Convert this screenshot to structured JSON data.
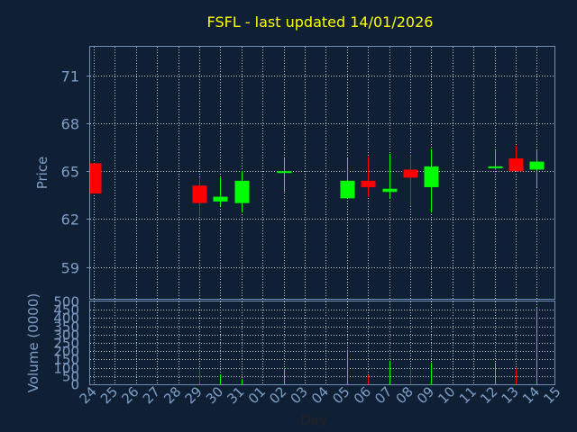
{
  "colors": {
    "background": "#0f2035",
    "title": "#ffff00",
    "axis_text": "#7f9fc8",
    "grid": "#cccccc",
    "frame": "#6f8fb8",
    "up": "#00ff00",
    "down": "#ff0000"
  },
  "chart_data": [
    {
      "type": "candlestick",
      "title": "FSFL - last updated 14/01/2026",
      "ylabel": "Price",
      "ylim": [
        57,
        72.8
      ],
      "yticks": [
        59,
        62,
        65,
        68,
        71
      ],
      "grid": true,
      "candles": [
        {
          "day": "24",
          "open": 65.5,
          "high": 65.5,
          "low": 63.6,
          "close": 63.6
        },
        {
          "day": "29",
          "open": 64.1,
          "high": 64.6,
          "low": 62.2,
          "close": 63.0
        },
        {
          "day": "30",
          "open": 63.1,
          "high": 64.6,
          "low": 62.8,
          "close": 63.4
        },
        {
          "day": "31",
          "open": 63.0,
          "high": 65.0,
          "low": 62.4,
          "close": 64.4
        },
        {
          "day": "02",
          "open": 64.9,
          "high": 65.8,
          "low": 63.7,
          "close": 65.0
        },
        {
          "day": "05",
          "open": 63.3,
          "high": 65.8,
          "low": 63.3,
          "close": 64.4
        },
        {
          "day": "06",
          "open": 64.4,
          "high": 65.9,
          "low": 63.4,
          "close": 64.0
        },
        {
          "day": "07",
          "open": 63.7,
          "high": 66.1,
          "low": 63.3,
          "close": 63.9
        },
        {
          "day": "08",
          "open": 65.1,
          "high": 66.0,
          "low": 62.8,
          "close": 64.6
        },
        {
          "day": "09",
          "open": 64.0,
          "high": 66.4,
          "low": 62.4,
          "close": 65.3
        },
        {
          "day": "12",
          "open": 65.2,
          "high": 66.3,
          "low": 65.1,
          "close": 65.3
        },
        {
          "day": "13",
          "open": 65.8,
          "high": 66.6,
          "low": 65.0,
          "close": 65.0
        },
        {
          "day": "14",
          "open": 65.1,
          "high": 66.3,
          "low": 64.0,
          "close": 65.6
        }
      ]
    },
    {
      "type": "bar",
      "ylabel": "Volume (0000)",
      "xlabel": "Day",
      "ylim": [
        0,
        500
      ],
      "yticks": [
        0,
        50,
        100,
        150,
        200,
        250,
        300,
        350,
        400,
        450,
        500
      ],
      "grid": true,
      "categories": [
        "24",
        "25",
        "26",
        "27",
        "28",
        "29",
        "30",
        "31",
        "01",
        "02",
        "03",
        "04",
        "05",
        "06",
        "07",
        "08",
        "09",
        "10",
        "11",
        "12",
        "13",
        "14",
        "15"
      ],
      "volumes": [
        {
          "day": "29",
          "value": 95,
          "direction": "down"
        },
        {
          "day": "30",
          "value": 60,
          "direction": "up"
        },
        {
          "day": "31",
          "value": 30,
          "direction": "up"
        },
        {
          "day": "02",
          "value": 95,
          "direction": "up"
        },
        {
          "day": "05",
          "value": 210,
          "direction": "up"
        },
        {
          "day": "06",
          "value": 55,
          "direction": "down"
        },
        {
          "day": "07",
          "value": 140,
          "direction": "up"
        },
        {
          "day": "08",
          "value": 95,
          "direction": "down"
        },
        {
          "day": "09",
          "value": 130,
          "direction": "up"
        },
        {
          "day": "12",
          "value": 130,
          "direction": "up"
        },
        {
          "day": "13",
          "value": 95,
          "direction": "down"
        },
        {
          "day": "14",
          "value": 460,
          "direction": "up"
        }
      ]
    }
  ]
}
